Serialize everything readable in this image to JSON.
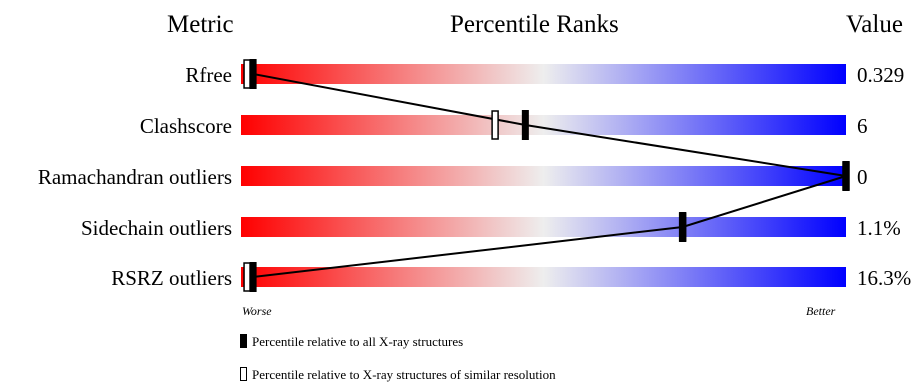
{
  "header": {
    "metric": "Metric",
    "title": "Percentile Ranks",
    "value": "Value"
  },
  "colors": {
    "worse": "#ff0000",
    "middle": "#eeeeee",
    "better": "#0000ff"
  },
  "chart_data": {
    "type": "bar",
    "title": "Percentile Ranks",
    "categories": [
      "Rfree",
      "Clashscore",
      "Ramachandran outliers",
      "Sidechain outliers",
      "RSRZ outliers"
    ],
    "values": [
      "0.329",
      "6",
      "0",
      "1.1%",
      "16.3%"
    ],
    "series": [
      {
        "name": "Percentile relative to all X-ray structures",
        "values": [
          2,
          47,
          100,
          73,
          2
        ]
      },
      {
        "name": "Percentile relative to X-ray structures of similar resolution",
        "values": [
          1,
          42,
          100,
          73,
          1
        ]
      }
    ],
    "xlim": [
      0,
      100
    ],
    "axis_labels": {
      "low": "Worse",
      "high": "Better"
    }
  },
  "legend": {
    "all": "Percentile relative to all X-ray structures",
    "similar": "Percentile relative to X-ray structures of similar resolution"
  }
}
